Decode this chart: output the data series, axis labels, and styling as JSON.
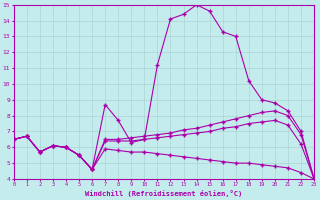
{
  "xlabel": "Windchill (Refroidissement éolien,°C)",
  "xlim": [
    0,
    23
  ],
  "ylim": [
    4,
    15
  ],
  "xticks": [
    0,
    1,
    2,
    3,
    4,
    5,
    6,
    7,
    8,
    9,
    10,
    11,
    12,
    13,
    14,
    15,
    16,
    17,
    18,
    19,
    20,
    21,
    22,
    23
  ],
  "yticks": [
    4,
    5,
    6,
    7,
    8,
    9,
    10,
    11,
    12,
    13,
    14,
    15
  ],
  "background_color": "#c5ecec",
  "grid_color": "#aad4d4",
  "line_color": "#aa00aa",
  "line1_x": [
    0,
    1,
    2,
    3,
    4,
    5,
    6,
    7,
    8,
    9,
    10,
    11,
    12,
    13,
    14,
    15,
    16,
    17,
    18,
    19,
    20,
    21,
    22,
    23
  ],
  "line1_y": [
    6.5,
    6.7,
    5.7,
    6.1,
    6.0,
    5.5,
    4.6,
    8.7,
    7.7,
    6.3,
    6.5,
    11.2,
    14.1,
    14.4,
    15.0,
    14.6,
    13.3,
    13.0,
    10.2,
    9.0,
    8.8,
    8.3,
    7.0,
    4.0
  ],
  "line2_x": [
    0,
    1,
    2,
    3,
    4,
    5,
    6,
    7,
    8,
    9,
    10,
    11,
    12,
    13,
    14,
    15,
    16,
    17,
    18,
    19,
    20,
    21,
    22,
    23
  ],
  "line2_y": [
    6.5,
    6.7,
    5.7,
    6.1,
    6.0,
    5.5,
    4.6,
    6.5,
    6.5,
    6.6,
    6.7,
    6.8,
    6.9,
    7.1,
    7.2,
    7.4,
    7.6,
    7.8,
    8.0,
    8.2,
    8.3,
    8.0,
    6.8,
    4.0
  ],
  "line3_x": [
    0,
    1,
    2,
    3,
    4,
    5,
    6,
    7,
    8,
    9,
    10,
    11,
    12,
    13,
    14,
    15,
    16,
    17,
    18,
    19,
    20,
    21,
    22,
    23
  ],
  "line3_y": [
    6.5,
    6.7,
    5.7,
    6.1,
    6.0,
    5.5,
    4.6,
    6.4,
    6.4,
    6.4,
    6.5,
    6.6,
    6.7,
    6.8,
    6.9,
    7.0,
    7.2,
    7.3,
    7.5,
    7.6,
    7.7,
    7.4,
    6.2,
    4.0
  ],
  "line4_x": [
    0,
    1,
    2,
    3,
    4,
    5,
    6,
    7,
    8,
    9,
    10,
    11,
    12,
    13,
    14,
    15,
    16,
    17,
    18,
    19,
    20,
    21,
    22,
    23
  ],
  "line4_y": [
    6.5,
    6.7,
    5.7,
    6.1,
    6.0,
    5.5,
    4.6,
    5.9,
    5.8,
    5.7,
    5.7,
    5.6,
    5.5,
    5.4,
    5.3,
    5.2,
    5.1,
    5.0,
    5.0,
    4.9,
    4.8,
    4.7,
    4.4,
    4.0
  ]
}
